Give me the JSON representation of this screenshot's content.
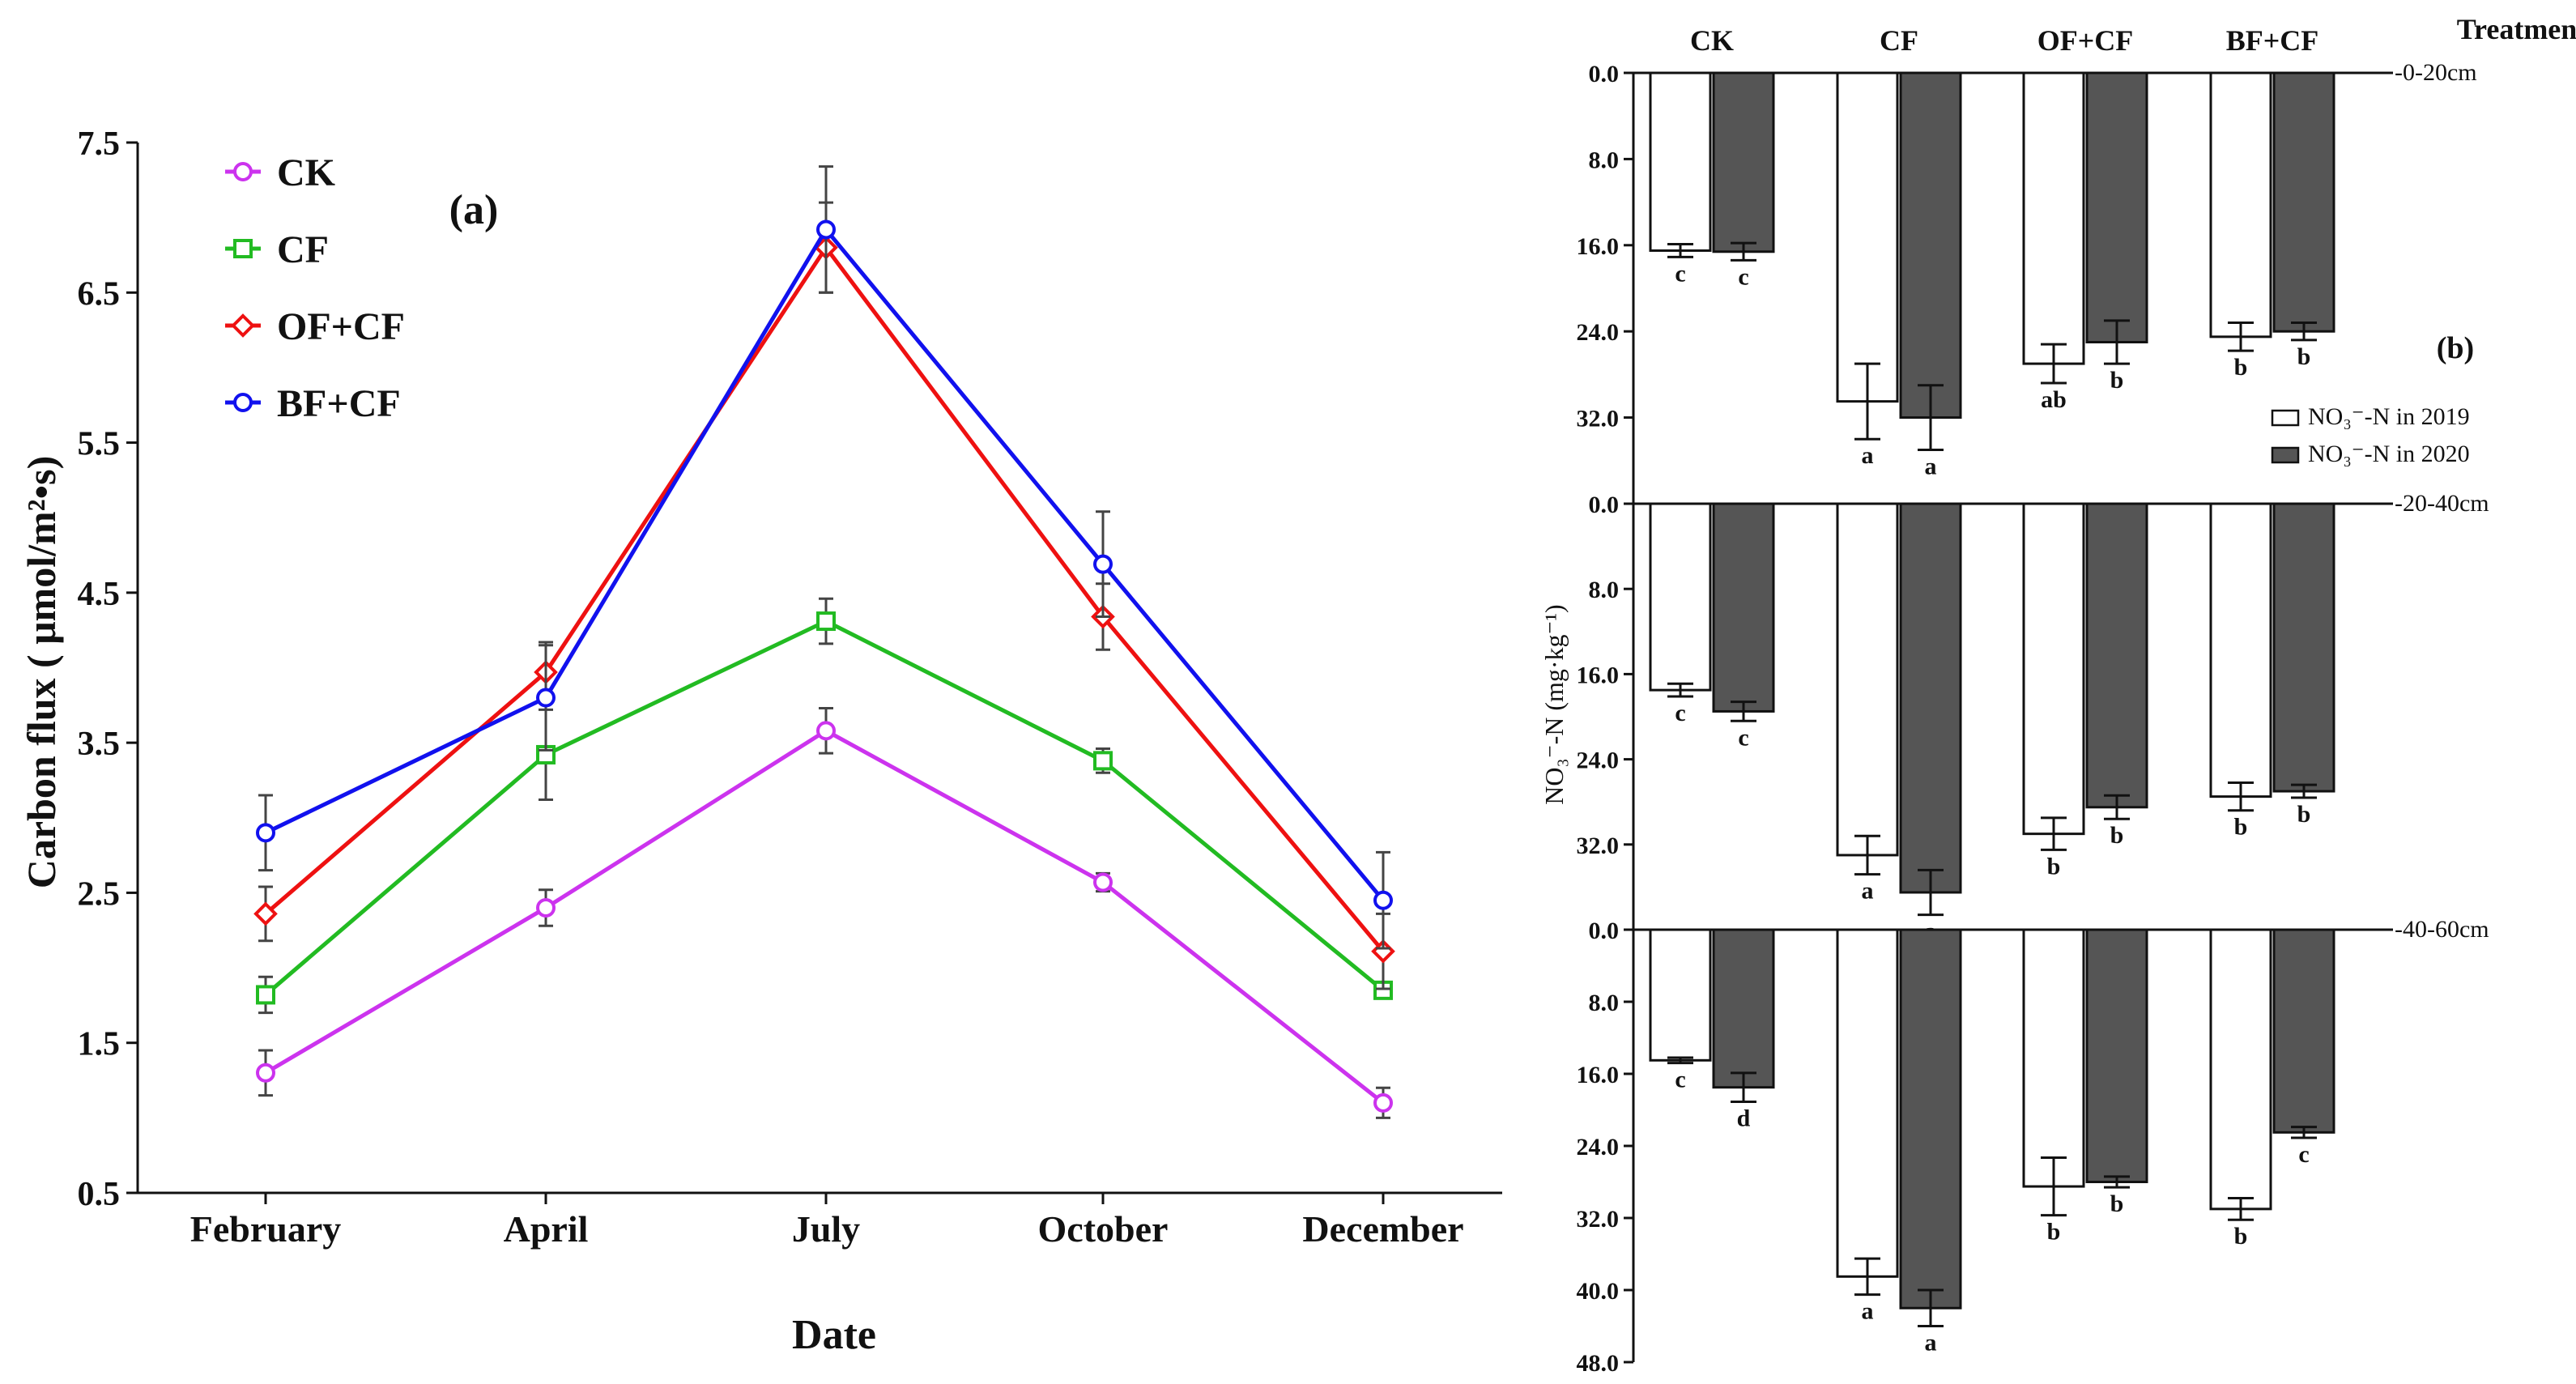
{
  "chart_data": [
    {
      "type": "line",
      "panel_label": "(a)",
      "xlabel": "Date",
      "ylabel": "Carbon flux ( μmol/m²•s)",
      "categories": [
        "February",
        "April",
        "July",
        "October",
        "December"
      ],
      "ylim": [
        0.5,
        7.5
      ],
      "yticks": [
        "0.5",
        "1.5",
        "2.5",
        "3.5",
        "4.5",
        "5.5",
        "6.5",
        "7.5"
      ],
      "series": [
        {
          "name": "CK",
          "color": "#cc33ee",
          "marker": "circle",
          "values": [
            1.3,
            2.4,
            3.58,
            2.57,
            1.1
          ],
          "errors": [
            0.15,
            0.12,
            0.15,
            0.06,
            0.1
          ]
        },
        {
          "name": "CF",
          "color": "#22bb22",
          "marker": "square",
          "values": [
            1.82,
            3.42,
            4.31,
            3.38,
            1.85
          ],
          "errors": [
            0.12,
            0.3,
            0.15,
            0.08,
            0.05
          ]
        },
        {
          "name": "OF+CF",
          "color": "#ee1111",
          "marker": "diamond",
          "values": [
            2.36,
            3.97,
            6.8,
            4.34,
            2.11
          ],
          "errors": [
            0.18,
            0.2,
            0.3,
            0.22,
            0.25
          ]
        },
        {
          "name": "BF+CF",
          "color": "#1111ee",
          "marker": "circle",
          "values": [
            2.9,
            3.8,
            6.92,
            4.69,
            2.45
          ],
          "errors": [
            0.25,
            0.35,
            0.42,
            0.35,
            0.32
          ]
        }
      ]
    },
    {
      "type": "bar",
      "panel_label": "(b)",
      "ylabel": "NO₃⁻-N (mg·kg⁻¹)",
      "treatments_label": "Treatments",
      "categories": [
        "CK",
        "CF",
        "OF+CF",
        "BF+CF"
      ],
      "legend": [
        "NO₃⁻-N in 2019",
        "NO₃⁻-N in 2020"
      ],
      "legend_colors": [
        "#ffffff",
        "#555555"
      ],
      "panels": [
        {
          "depth": "0-20cm",
          "ylim": [
            0,
            40
          ],
          "yticks": [
            "0.0",
            "8.0",
            "16.0",
            "24.0",
            "32.0"
          ],
          "values_2019": [
            16.5,
            30.5,
            27.0,
            24.5
          ],
          "values_2020": [
            16.6,
            32.0,
            25.0,
            24.0
          ],
          "errors_2019": [
            0.6,
            3.5,
            1.8,
            1.3
          ],
          "errors_2020": [
            0.8,
            3.0,
            2.0,
            0.8
          ],
          "letters_2019": [
            "c",
            "a",
            "ab",
            "b"
          ],
          "letters_2020": [
            "c",
            "a",
            "b",
            "b"
          ]
        },
        {
          "depth": "20-40cm",
          "ylim": [
            0,
            40
          ],
          "yticks": [
            "0.0",
            "8.0",
            "16.0",
            "24.0",
            "32.0"
          ],
          "values_2019": [
            17.5,
            33.0,
            31.0,
            27.5
          ],
          "values_2020": [
            19.5,
            36.5,
            28.5,
            27.0
          ],
          "errors_2019": [
            0.6,
            1.8,
            1.5,
            1.3
          ],
          "errors_2020": [
            0.9,
            2.1,
            1.1,
            0.6
          ],
          "letters_2019": [
            "c",
            "a",
            "b",
            "b"
          ],
          "letters_2020": [
            "c",
            "a",
            "b",
            "b"
          ]
        },
        {
          "depth": "40-60cm",
          "ylim": [
            0,
            48
          ],
          "yticks": [
            "0.0",
            "8.0",
            "16.0",
            "24.0",
            "32.0",
            "40.0",
            "48.0"
          ],
          "values_2019": [
            14.5,
            38.5,
            28.5,
            31.0
          ],
          "values_2020": [
            17.5,
            42.0,
            28.0,
            22.5
          ],
          "errors_2019": [
            0.3,
            2.0,
            3.2,
            1.2
          ],
          "errors_2020": [
            1.6,
            2.0,
            0.6,
            0.6
          ],
          "letters_2019": [
            "c",
            "a",
            "b",
            "b"
          ],
          "letters_2020": [
            "d",
            "a",
            "b",
            "c"
          ]
        }
      ]
    }
  ]
}
